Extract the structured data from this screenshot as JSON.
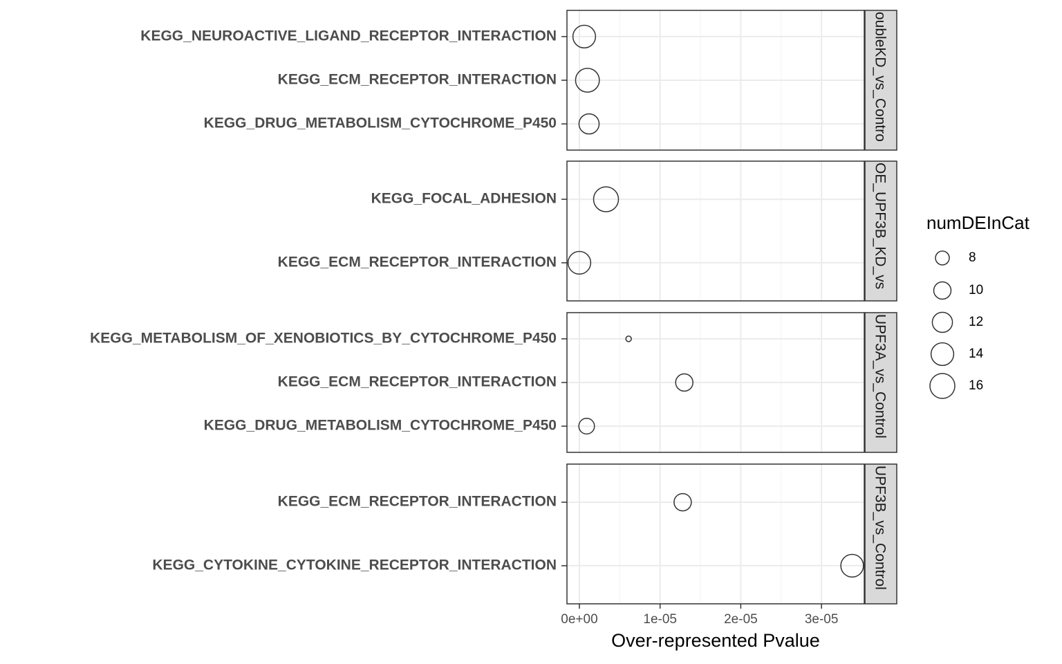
{
  "chart_data": {
    "type": "scatter",
    "x_label": "Over-represented Pvalue",
    "xlim": [
      -1.54e-06,
      3.53e-05
    ],
    "xticks": [
      {
        "value": 0,
        "label": "0e+00"
      },
      {
        "value": 1e-05,
        "label": "1e-05"
      },
      {
        "value": 2e-05,
        "label": "2e-05"
      },
      {
        "value": 3e-05,
        "label": "3e-05"
      }
    ],
    "xminorticks": [
      5e-06,
      1.5e-05,
      2.5e-05,
      3.5e-05
    ],
    "grid": true,
    "color": "#333333",
    "size_legend": {
      "title": "numDEInCat",
      "values": [
        8,
        10,
        12,
        14,
        16
      ]
    },
    "facets": [
      {
        "strip": "oubleKD_vs_Contro",
        "categories": [
          "KEGG_NEUROACTIVE_LIGAND_RECEPTOR_INTERACTION",
          "KEGG_ECM_RECEPTOR_INTERACTION",
          "KEGG_DRUG_METABOLISM_CYTOCHROME_P450"
        ],
        "x": [
          6e-07,
          1e-06,
          1.2e-06
        ],
        "sizes": [
          14,
          15,
          12
        ]
      },
      {
        "strip": "OE_UPF3B_KD_vs",
        "categories": [
          "KEGG_FOCAL_ADHESION",
          "KEGG_ECM_RECEPTOR_INTERACTION"
        ],
        "x": [
          3.3e-06,
          0
        ],
        "sizes": [
          16,
          14
        ]
      },
      {
        "strip": "UPF3A_vs_Control",
        "categories": [
          "KEGG_METABOLISM_OF_XENOBIOTICS_BY_CYTOCHROME_P450",
          "KEGG_ECM_RECEPTOR_INTERACTION",
          "KEGG_DRUG_METABOLISM_CYTOCHROME_P450"
        ],
        "x": [
          6.1e-06,
          1.3e-05,
          9e-07
        ],
        "sizes": [
          5,
          10,
          9
        ]
      },
      {
        "strip": "UPF3B_vs_Control",
        "categories": [
          "KEGG_ECM_RECEPTOR_INTERACTION",
          "KEGG_CYTOKINE_CYTOKINE_RECEPTOR_INTERACTION"
        ],
        "x": [
          1.28e-05,
          3.38e-05
        ],
        "sizes": [
          10,
          14
        ]
      }
    ]
  }
}
